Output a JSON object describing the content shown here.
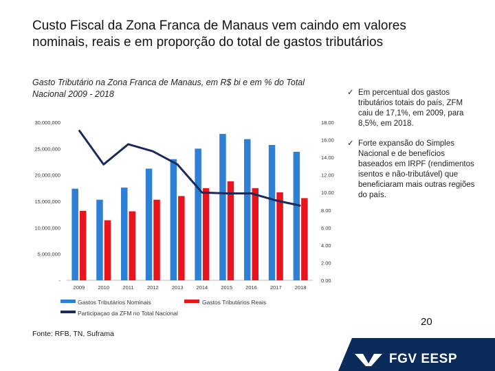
{
  "slide": {
    "title": "Custo Fiscal da Zona Franca de Manaus vem caindo em valores nominais, reais e em proporção do total de gastos tributários",
    "chart_title": "Gasto Tributário na Zona Franca de Manaus, em R$ bi e em % do Total Nacional  2009 - 2018",
    "bullets": [
      "Em percentual dos gastos tributários totais  do país, ZFM caiu de 17,1%, em 2009, para 8,5%, em 2018.",
      "Forte expansão do Simples Nacional e de benefícios baseados em IRPF (rendimentos isentos e não-tributável) que beneficiaram mais outras regiões do país."
    ],
    "page_number": "20",
    "source": "Fonte: RFB, TN, Suframa",
    "brand": "FGV EESP"
  },
  "colors": {
    "nominal": "#2e7fd6",
    "real": "#e8141e",
    "share": "#1b2a5c",
    "brand_band": "#0b2b5a"
  },
  "chart_data": {
    "type": "bar",
    "categories": [
      "2009",
      "2010",
      "2011",
      "2012",
      "2013",
      "2014",
      "2015",
      "2016",
      "2017",
      "2018"
    ],
    "series": [
      {
        "name": "Gastos Tributários Nominais",
        "kind": "bar",
        "axis": "left",
        "values": [
          17400000,
          15300000,
          17600000,
          21200000,
          23000000,
          25000000,
          27800000,
          26800000,
          25700000,
          24400000
        ]
      },
      {
        "name": "Gastos Tributários Reais",
        "kind": "bar",
        "axis": "left",
        "values": [
          13200000,
          11400000,
          13100000,
          15300000,
          16000000,
          17500000,
          18800000,
          17500000,
          16700000,
          15600000
        ]
      },
      {
        "name": "Participaçao da ZFM no Total Nacional",
        "kind": "line",
        "axis": "right",
        "values": [
          17.1,
          13.2,
          15.5,
          14.7,
          13.2,
          10.0,
          9.9,
          9.9,
          9.1,
          8.5
        ]
      }
    ],
    "left_axis": {
      "ylim": [
        0,
        30000000
      ],
      "ticks": [
        "-",
        "5,000,000",
        "10,000,000",
        "15,000,000",
        "20,000,000",
        "25,000,000",
        "30,000,000"
      ]
    },
    "right_axis": {
      "ylim": [
        0,
        18
      ],
      "ticks": [
        "0.00",
        "2.00",
        "4.00",
        "6.00",
        "8.00",
        "10.00",
        "12.00",
        "14.00",
        "16.00",
        "18.00"
      ]
    },
    "legend": [
      "Gastos Tributários Nominais",
      "Gastos Tributários Reais",
      "Participaçao da ZFM no Total Nacional"
    ],
    "legend_position": "bottom"
  }
}
